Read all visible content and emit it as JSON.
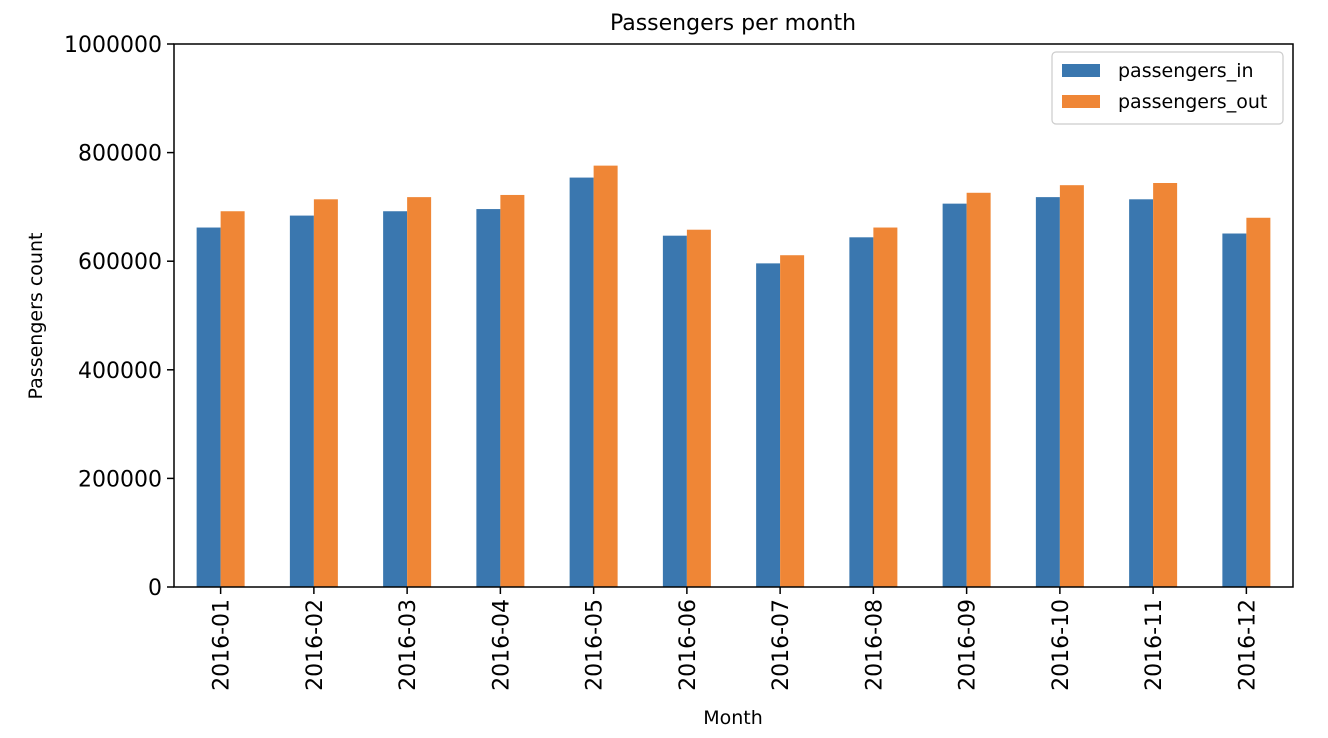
{
  "chart_data": {
    "type": "bar",
    "title": "Passengers per month",
    "xlabel": "Month",
    "ylabel": "Passengers count",
    "categories": [
      "2016-01",
      "2016-02",
      "2016-03",
      "2016-04",
      "2016-05",
      "2016-06",
      "2016-07",
      "2016-08",
      "2016-09",
      "2016-10",
      "2016-11",
      "2016-12"
    ],
    "series": [
      {
        "name": "passengers_in",
        "color": "#3A77AF",
        "values": [
          662000,
          684000,
          692000,
          696000,
          754000,
          647000,
          596000,
          644000,
          706000,
          718000,
          714000,
          651000
        ]
      },
      {
        "name": "passengers_out",
        "color": "#EF8636",
        "values": [
          692000,
          714000,
          718000,
          722000,
          776000,
          658000,
          611000,
          662000,
          726000,
          740000,
          744000,
          680000
        ]
      }
    ],
    "ylim": [
      0,
      1000000
    ],
    "yticks": [
      "0",
      "200000",
      "400000",
      "600000",
      "800000",
      "1000000"
    ],
    "grid": false,
    "legend_position": "top-right"
  }
}
